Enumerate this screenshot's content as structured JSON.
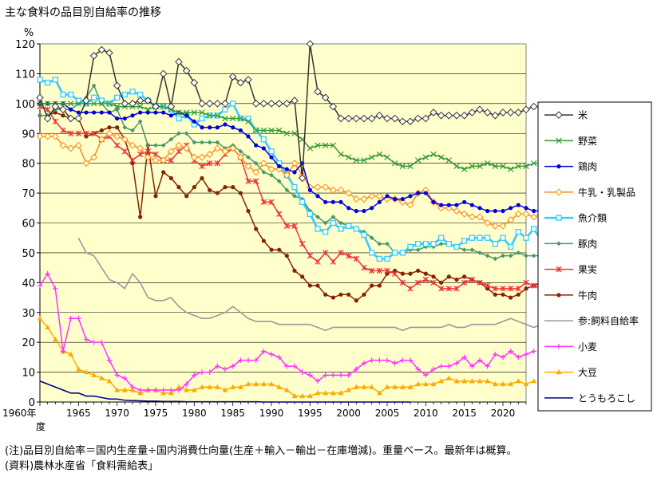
{
  "title": "主な食料の品目別自給率の推移",
  "notes": [
    "(注)品目別自給率＝国内生産量÷国内消費仕向量(生産＋輸入－輸出－在庫増減)。重量ベース。最新年は概算。",
    "(資料)農林水産省「食料需給表」"
  ],
  "chart_data": {
    "type": "line",
    "ylabel": "%",
    "ylim": [
      0,
      120
    ],
    "yticks": [
      0,
      10,
      20,
      30,
      40,
      50,
      60,
      70,
      80,
      90,
      100,
      110,
      120
    ],
    "xlim": [
      1960,
      2023
    ],
    "xticks": [
      1960,
      1965,
      1970,
      1975,
      1980,
      1985,
      1990,
      1995,
      2000,
      2005,
      2010,
      2015,
      2020
    ],
    "xtick_labels": [
      "1960年",
      "1965",
      "1970",
      "1975",
      "1980",
      "1985",
      "1990",
      "1995",
      "2000",
      "2005",
      "2010",
      "2015",
      "2020"
    ],
    "xlabel_suffix": "度",
    "grid": true,
    "legend_position": "right",
    "plot_background": "#ffffcc",
    "series": [
      {
        "name": "米",
        "color": "#333333",
        "marker": "diamond",
        "start": 1960,
        "values": [
          102,
          95,
          99,
          98,
          95,
          95,
          101,
          116,
          118,
          117,
          106,
          100,
          100,
          101,
          101,
          99,
          110,
          99,
          114,
          111,
          107,
          100,
          100,
          100,
          100,
          109,
          107,
          108,
          100,
          100,
          100,
          100,
          100,
          101,
          75,
          120,
          104,
          102,
          99,
          95,
          95,
          95,
          95,
          95,
          96,
          95,
          95,
          94,
          94,
          95,
          95,
          97,
          96,
          96,
          96,
          96,
          97,
          98,
          97,
          96,
          97,
          97,
          97,
          98,
          99,
          99,
          99
        ]
      },
      {
        "name": "野菜",
        "color": "#339933",
        "marker": "x",
        "start": 1960,
        "values": [
          100,
          100,
          100,
          100,
          100,
          100,
          100,
          100,
          100,
          100,
          99,
          99,
          99,
          99,
          98,
          99,
          99,
          98,
          97,
          97,
          97,
          97,
          96,
          96,
          95,
          95,
          95,
          94,
          91,
          91,
          91,
          91,
          90,
          90,
          88,
          85,
          86,
          86,
          86,
          83,
          82,
          81,
          81,
          82,
          83,
          82,
          80,
          79,
          79,
          81,
          82,
          83,
          82,
          81,
          79,
          78,
          79,
          79,
          80,
          79,
          79,
          78,
          79,
          79,
          80,
          80,
          79,
          80
        ]
      },
      {
        "name": "鶏肉",
        "color": "#0000dd",
        "marker": "dot",
        "start": 1960,
        "values": [
          100,
          100,
          100,
          100,
          98,
          97,
          97,
          97,
          97,
          97,
          95,
          95,
          96,
          97,
          97,
          97,
          97,
          96,
          97,
          96,
          94,
          92,
          92,
          92,
          93,
          92,
          91,
          89,
          86,
          85,
          82,
          79,
          78,
          77,
          80,
          71,
          69,
          67,
          67,
          67,
          65,
          64,
          64,
          65,
          67,
          69,
          68,
          68,
          69,
          70,
          70,
          67,
          66,
          66,
          66,
          67,
          66,
          65,
          64,
          64,
          64,
          65,
          66,
          65,
          64,
          64,
          65
        ]
      },
      {
        "name": "牛乳・乳製品",
        "color": "#ff8822",
        "marker": "diamond-open",
        "start": 1960,
        "values": [
          89,
          89,
          89,
          86,
          85,
          86,
          80,
          82,
          88,
          90,
          89,
          88,
          86,
          85,
          82,
          81,
          81,
          84,
          86,
          85,
          82,
          82,
          83,
          85,
          84,
          85,
          82,
          79,
          77,
          80,
          78,
          78,
          76,
          80,
          76,
          72,
          72,
          72,
          71,
          71,
          70,
          68,
          68,
          69,
          69,
          68,
          68,
          67,
          66,
          70,
          71,
          67,
          65,
          65,
          64,
          63,
          62,
          62,
          60,
          59,
          59,
          61,
          63,
          63,
          62,
          63
        ]
      },
      {
        "name": "魚介類",
        "color": "#33ccff",
        "marker": "square-open",
        "start": 1960,
        "values": [
          108,
          107,
          108,
          103,
          103,
          101,
          100,
          102,
          101,
          100,
          102,
          103,
          104,
          103,
          101,
          99,
          99,
          98,
          95,
          96,
          93,
          95,
          96,
          96,
          98,
          100,
          95,
          95,
          91,
          88,
          84,
          80,
          76,
          72,
          67,
          63,
          58,
          57,
          60,
          58,
          59,
          58,
          56,
          50,
          48,
          48,
          50,
          50,
          52,
          53,
          53,
          53,
          55,
          53,
          52,
          54,
          55,
          55,
          55,
          53,
          55,
          52,
          57,
          55,
          58,
          54,
          52,
          52
        ]
      },
      {
        "name": "豚肉",
        "color": "#449966",
        "marker": "diamond-small",
        "start": 1960,
        "values": [
          96,
          96,
          98,
          98,
          98,
          100,
          102,
          106,
          100,
          97,
          98,
          92,
          91,
          94,
          86,
          86,
          86,
          88,
          90,
          90,
          87,
          87,
          87,
          87,
          85,
          86,
          84,
          82,
          80,
          77,
          76,
          74,
          71,
          69,
          68,
          64,
          62,
          60,
          62,
          60,
          59,
          58,
          57,
          55,
          53,
          53,
          50,
          50,
          51,
          51,
          52,
          52,
          53,
          53,
          52,
          51,
          51,
          50,
          49,
          48,
          49,
          49,
          50,
          49,
          49,
          49
        ]
      },
      {
        "name": "果実",
        "color": "#ee3333",
        "marker": "star",
        "start": 1960,
        "values": [
          99,
          98,
          94,
          91,
          90,
          90,
          90,
          90,
          88,
          89,
          86,
          84,
          81,
          83,
          84,
          83,
          81,
          81,
          84,
          86,
          81,
          79,
          80,
          80,
          83,
          85,
          82,
          74,
          74,
          67,
          67,
          63,
          59,
          59,
          53,
          49,
          47,
          50,
          47,
          50,
          49,
          48,
          45,
          44,
          44,
          44,
          43,
          40,
          38,
          40,
          41,
          40,
          38,
          38,
          38,
          40,
          41,
          40,
          39,
          38,
          38,
          38,
          38,
          40,
          39,
          38
        ]
      },
      {
        "name": "牛肉",
        "color": "#882200",
        "marker": "dot",
        "start": 1960,
        "values": [
          96,
          96,
          97,
          96,
          95,
          95,
          89,
          90,
          91,
          92,
          92,
          88,
          80,
          62,
          86,
          69,
          77,
          75,
          72,
          69,
          72,
          75,
          71,
          70,
          72,
          72,
          70,
          64,
          58,
          54,
          51,
          51,
          49,
          44,
          42,
          39,
          39,
          36,
          35,
          36,
          36,
          34,
          36,
          39,
          39,
          43,
          44,
          43,
          43,
          44,
          43,
          42,
          40,
          42,
          41,
          42,
          41,
          40,
          38,
          36,
          36,
          35,
          36,
          38,
          39,
          40
        ]
      },
      {
        "name": "参:飼料自給率",
        "color": "#999999",
        "marker": "none",
        "start": 1965,
        "values": [
          55,
          50,
          49,
          45,
          41,
          40,
          38,
          43,
          40,
          35,
          34,
          34,
          35,
          32,
          30,
          29,
          28,
          28,
          29,
          30,
          32,
          30,
          28,
          27,
          27,
          27,
          26,
          26,
          26,
          26,
          26,
          25,
          24,
          25,
          25,
          25,
          25,
          25,
          25,
          25,
          25,
          25,
          24,
          25,
          25,
          25,
          25,
          25,
          26,
          25,
          25,
          26,
          26,
          26,
          26,
          27,
          28,
          27,
          26,
          25,
          26,
          25,
          26,
          26,
          26,
          26,
          27,
          27,
          27
        ]
      },
      {
        "name": "小麦",
        "color": "#ff33ff",
        "marker": "plus",
        "start": 1960,
        "values": [
          39,
          43,
          38,
          17,
          28,
          28,
          21,
          20,
          20,
          14,
          9,
          8,
          5,
          4,
          4,
          4,
          4,
          4,
          4,
          6,
          9,
          10,
          10,
          12,
          11,
          12,
          14,
          14,
          14,
          17,
          16,
          15,
          12,
          12,
          10,
          9,
          7,
          9,
          9,
          9,
          9,
          11,
          13,
          14,
          14,
          14,
          13,
          14,
          14,
          11,
          9,
          11,
          12,
          12,
          13,
          15,
          12,
          14,
          12,
          16,
          15,
          17,
          15,
          16,
          17
        ]
      },
      {
        "name": "大豆",
        "color": "#ffaa00",
        "marker": "triangle",
        "start": 1960,
        "values": [
          28,
          25,
          21,
          17,
          16,
          11,
          10,
          9,
          8,
          7,
          4,
          4,
          4,
          3,
          4,
          4,
          3,
          3,
          5,
          4,
          4,
          5,
          5,
          5,
          4,
          5,
          5,
          6,
          6,
          6,
          6,
          5,
          4,
          2,
          2,
          2,
          3,
          3,
          3,
          3,
          4,
          5,
          5,
          5,
          3,
          5,
          5,
          5,
          5,
          6,
          6,
          6,
          7,
          8,
          7,
          7,
          7,
          7,
          7,
          6,
          6,
          6,
          7,
          6,
          7
        ]
      },
      {
        "name": "とうもろこし",
        "color": "#000080",
        "marker": "none",
        "start": 1960,
        "values": [
          7,
          6,
          5,
          4,
          3,
          3,
          2,
          2,
          1.5,
          1,
          1,
          0.6,
          0.5,
          0.4,
          0.3,
          0.3,
          0.2,
          0.2,
          0.2,
          0.1,
          0.1,
          0.1,
          0.1,
          0.1,
          0.1,
          0.1,
          0.1,
          0.1,
          0.1,
          0,
          0,
          0,
          0,
          0,
          0,
          0,
          0,
          0,
          0,
          0,
          0,
          0,
          0,
          0,
          0,
          0,
          0,
          0,
          0
        ]
      }
    ]
  }
}
